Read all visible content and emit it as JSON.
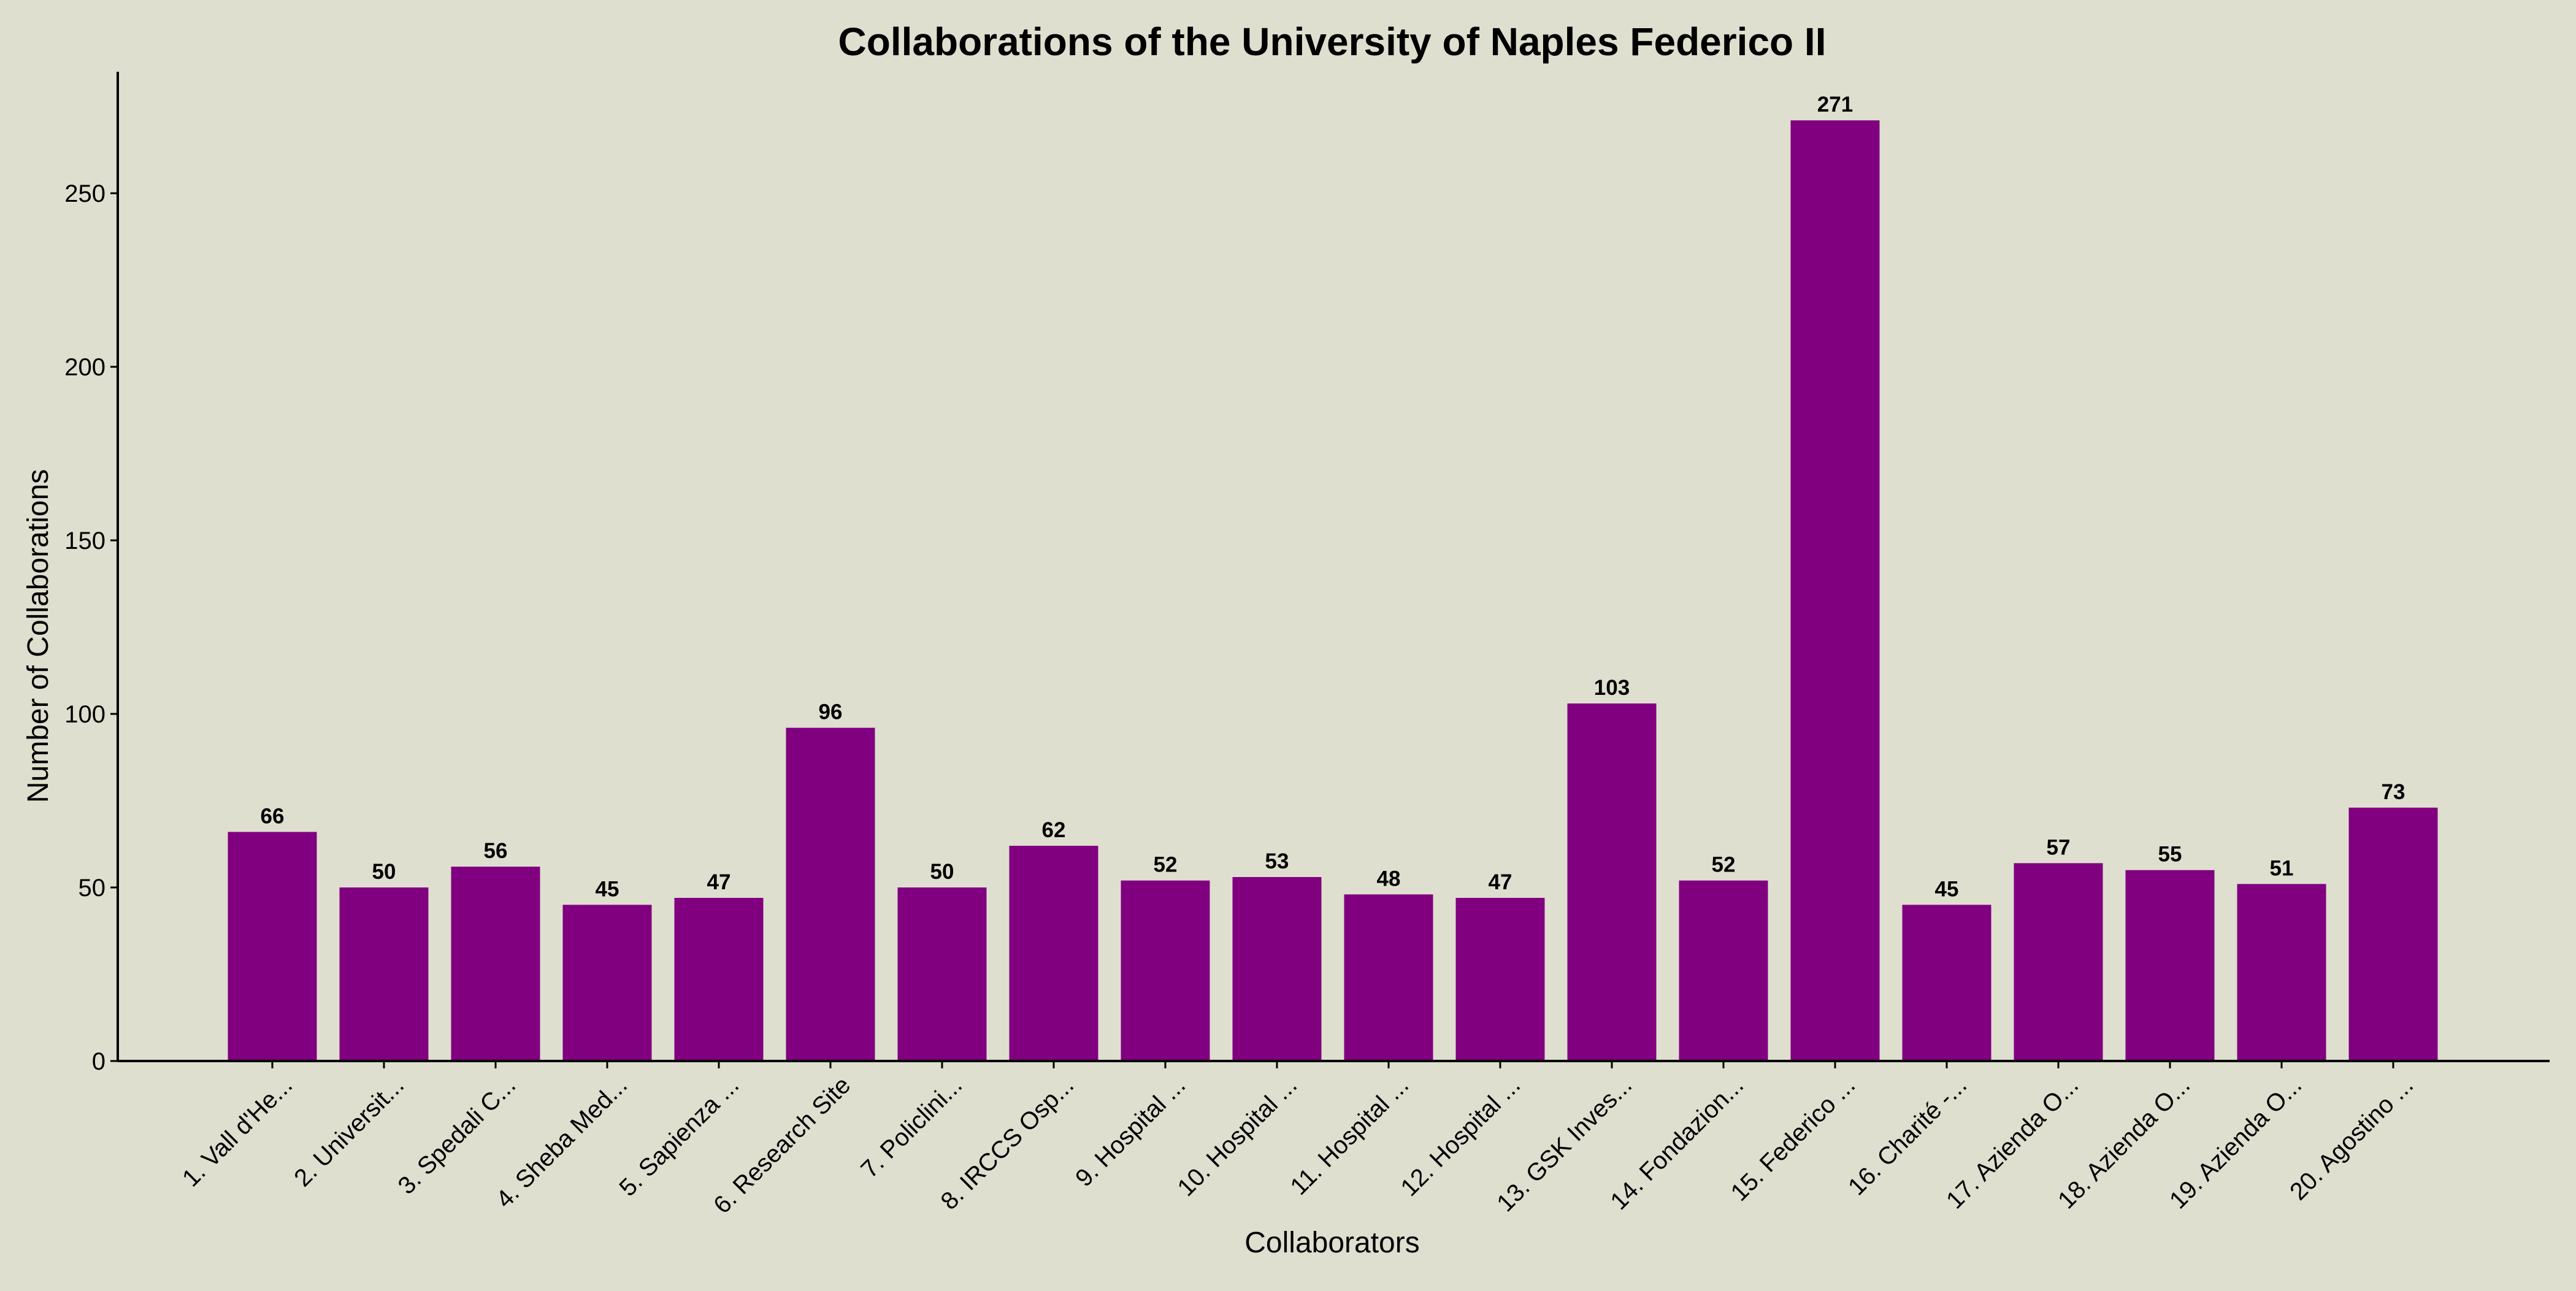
{
  "chart_data": {
    "type": "bar",
    "title": "Collaborations of the University of Naples Federico II",
    "xlabel": "Collaborators",
    "ylabel": "Number of Collaborations",
    "ylim": [
      0,
      285
    ],
    "yticks": [
      0,
      50,
      100,
      150,
      200,
      250
    ],
    "grid": false,
    "legend": "none",
    "colors": {
      "background": "#dfdfcf",
      "bar": "#800080",
      "axis": "#000000"
    },
    "categories": [
      "1. Vall d'He...",
      "2. Universit...",
      "3. Spedali C...",
      "4. Sheba Med...",
      "5. Sapienza ...",
      "6. Research Site",
      "7. Policlini...",
      "8. IRCCS Osp...",
      "9. Hospital ...",
      "10. Hospital ...",
      "11. Hospital ...",
      "12. Hospital ...",
      "13. GSK Inves...",
      "14. Fondazion...",
      "15. Federico ...",
      "16. Charité -...",
      "17. Azienda O...",
      "18. Azienda O...",
      "19. Azienda O...",
      "20. Agostino ..."
    ],
    "values": [
      66,
      50,
      56,
      45,
      47,
      96,
      50,
      62,
      52,
      53,
      48,
      47,
      103,
      52,
      271,
      45,
      57,
      55,
      51,
      73
    ]
  }
}
